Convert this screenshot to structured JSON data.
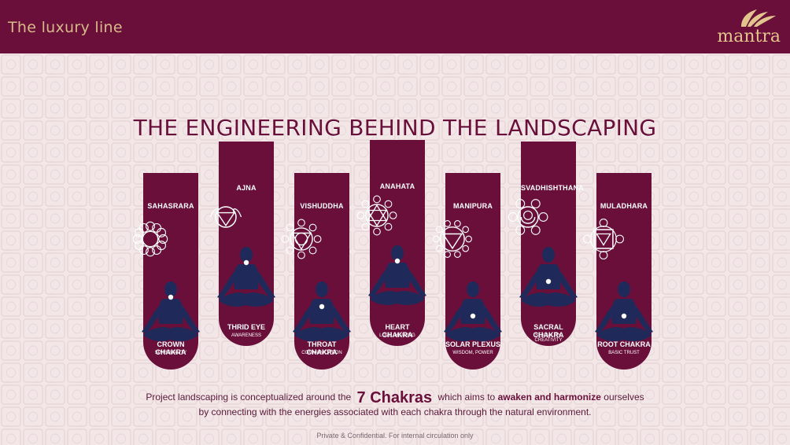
{
  "header": {
    "tagline": "The luxury line",
    "logo_text": "mantra"
  },
  "title": "THE ENGINEERING BEHIND THE LANDSCAPING",
  "chakras": [
    {
      "name": "SAHASRARA",
      "label": "CROWN CHAKRA",
      "sublabel": "SPIRITUALITY",
      "icon": "sahasrara-icon"
    },
    {
      "name": "AJNA",
      "label": "THRID EYE",
      "sublabel": "AWARENESS",
      "icon": "ajna-icon"
    },
    {
      "name": "VISHUDDHA",
      "label": "THROAT CHAKRA",
      "sublabel": "COMMUNICATION",
      "icon": "vishuddha-icon"
    },
    {
      "name": "ANAHATA",
      "label": "HEART CHAKRA",
      "sublabel": "LOVE, HEALING",
      "icon": "anahata-icon"
    },
    {
      "name": "MANIPURA",
      "label": "SOLAR PLEXUS",
      "sublabel": "WISDOM, POWER",
      "icon": "manipura-icon"
    },
    {
      "name": "SVADHISHTHANA",
      "label": "SACRAL CHAKRA",
      "sublabel": "SEXUALITY, CREATIVITY",
      "icon": "svadhishthana-icon"
    },
    {
      "name": "MULADHARA",
      "label": "ROOT CHAKRA",
      "sublabel": "BASIC TRUST",
      "icon": "muladhara-icon"
    }
  ],
  "description": {
    "part1": "Project landscaping is conceptualized around the",
    "highlight": "7 Chakras",
    "part2": "which aims to",
    "emphasis": "awaken and harmonize",
    "part3": "ourselves",
    "line2": "by connecting with the energies associated with each chakra through the natural environment."
  },
  "footer": "Private & Confidential. For internal circulation only",
  "colors": {
    "primary": "#6a0f3a",
    "background": "#f2e6e6",
    "gold": "#d8b98a",
    "figure": "#1f2a5a"
  }
}
